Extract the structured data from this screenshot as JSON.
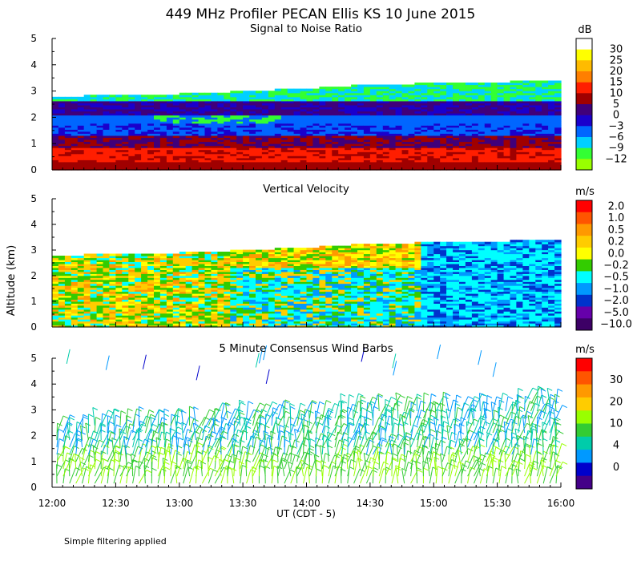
{
  "title": "449 MHz Profiler PECAN Ellis KS 10 June 2015",
  "ylabel": "Altitude (km)",
  "xlabel": "UT  (CDT - 5)",
  "footnote": "Simple filtering applied",
  "x_ticks": [
    "12:00",
    "12:30",
    "13:00",
    "13:30",
    "14:00",
    "14:30",
    "15:00",
    "15:30",
    "16:00"
  ],
  "y_ticks": [
    "0",
    "1",
    "2",
    "3",
    "4",
    "5"
  ],
  "chart_data": [
    {
      "type": "heatmap",
      "title": "Signal to Noise Ratio",
      "xlim": [
        "12:00",
        "16:00"
      ],
      "ylim": [
        0,
        5
      ],
      "colorbar": {
        "unit": "dB",
        "levels": [
          "30",
          "25",
          "20",
          "15",
          "10",
          "5",
          "0",
          "−3",
          "−6",
          "−9",
          "−12"
        ],
        "colors": [
          "#ffffff",
          "#ffff00",
          "#ffbb00",
          "#ff7f00",
          "#ff1e00",
          "#a00000",
          "#40007a",
          "#1a00cc",
          "#0066ff",
          "#00d0ff",
          "#33ff33",
          "#99ff00"
        ]
      },
      "top_of_data_km": [
        2.8,
        2.85,
        2.9,
        3.0,
        3.1,
        3.25,
        3.3,
        3.35,
        3.4
      ]
    },
    {
      "type": "heatmap",
      "title": "Vertical Velocity",
      "xlim": [
        "12:00",
        "16:00"
      ],
      "ylim": [
        0,
        5
      ],
      "colorbar": {
        "unit": "m/s",
        "levels": [
          "2.0",
          "1.0",
          "0.5",
          "0.2",
          "0.0",
          "−0.2",
          "−0.5",
          "−1.0",
          "−2.0",
          "−5.0",
          "−10.0"
        ],
        "colors": [
          "#ff0000",
          "#ff5500",
          "#ff9900",
          "#ffcc00",
          "#ffff00",
          "#33cc00",
          "#00ffff",
          "#0099ff",
          "#0033cc",
          "#6600aa",
          "#3d0066"
        ]
      },
      "top_of_data_km": [
        2.8,
        2.85,
        2.9,
        3.0,
        3.1,
        3.25,
        3.3,
        3.35,
        3.4
      ]
    },
    {
      "type": "scatter",
      "title": "5 Minute Consensus Wind Barbs",
      "xlim": [
        "12:00",
        "16:00"
      ],
      "ylim": [
        0,
        5
      ],
      "colorbar": {
        "unit": "m/s",
        "levels": [
          "30",
          "20",
          "10",
          "4",
          "0"
        ],
        "colors": [
          "#ff0000",
          "#ff5500",
          "#ff9900",
          "#ffcc00",
          "#99ff00",
          "#33cc33",
          "#00ccaa",
          "#0099ff",
          "#0000cc",
          "#440088"
        ]
      },
      "top_of_data_km": [
        2.3,
        2.45,
        2.6,
        2.75,
        2.9,
        3.0,
        3.1,
        3.2,
        3.3
      ]
    }
  ]
}
